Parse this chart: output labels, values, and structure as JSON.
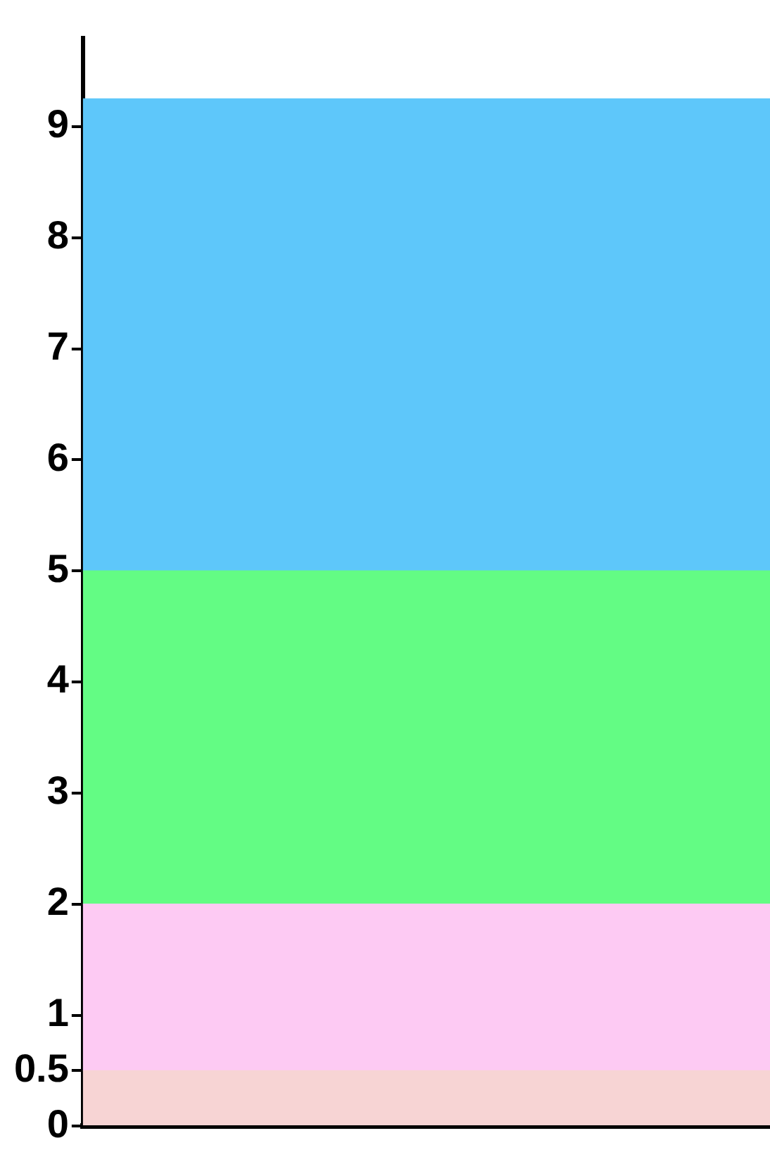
{
  "chart_data": {
    "type": "bar",
    "stacked": true,
    "categories": [
      null
    ],
    "series": [
      {
        "color": "#f7d4d4",
        "values": [
          0.5
        ]
      },
      {
        "color": "#fdcaf3",
        "values": [
          1.5
        ]
      },
      {
        "color": "#63fc84",
        "values": [
          3
        ]
      },
      {
        "color": "#5ec7fa",
        "values": [
          4.25
        ]
      }
    ],
    "ylim": [
      0,
      9.8
    ],
    "yticks": [
      0,
      0.5,
      1,
      2,
      3,
      4,
      5,
      6,
      7,
      8,
      9
    ],
    "grid": false,
    "legend": false,
    "tick_labels": "y"
  }
}
